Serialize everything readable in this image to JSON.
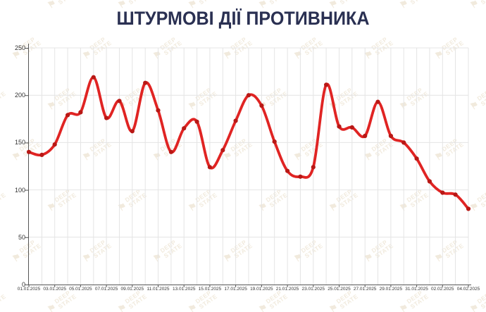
{
  "title": "ШТУРМОВІ ДІЇ ПРОТИВНИКА",
  "watermark": {
    "line1": "DEEP",
    "line2": "STATE",
    "flag_icon": "⚑"
  },
  "colors": {
    "line": "#e02423",
    "marker": "#b81815",
    "title": "#2a3052",
    "grid": "#e4e4e4",
    "axis": "#555555",
    "tick_text": "#333333",
    "watermark": "#d2bd92"
  },
  "chart_data": {
    "type": "line",
    "title": "ШТУРМОВІ ДІЇ ПРОТИВНИКА",
    "xlabel": "",
    "ylabel": "",
    "ylim": [
      0,
      250
    ],
    "y_ticks": [
      0,
      50,
      100,
      150,
      200,
      250
    ],
    "grid": true,
    "legend": "none",
    "x_tick_every": 2,
    "x": [
      "01.01.2025",
      "02.01.2025",
      "03.01.2025",
      "04.01.2025",
      "05.01.2025",
      "06.01.2025",
      "07.01.2025",
      "08.01.2025",
      "09.01.2025",
      "10.01.2025",
      "11.01.2025",
      "12.01.2025",
      "13.01.2025",
      "14.01.2025",
      "15.01.2025",
      "16.01.2025",
      "17.01.2025",
      "18.01.2025",
      "19.01.2025",
      "20.01.2025",
      "21.01.2025",
      "22.01.2025",
      "23.01.2025",
      "24.01.2025",
      "25.01.2025",
      "26.01.2025",
      "27.01.2025",
      "28.01.2025",
      "29.01.2025",
      "30.01.2025",
      "31.01.2025",
      "01.02.2025",
      "02.02.2025",
      "03.02.2025",
      "04.02.2025"
    ],
    "values": [
      140,
      137,
      148,
      179,
      182,
      219,
      176,
      194,
      162,
      213,
      184,
      140,
      165,
      172,
      124,
      142,
      173,
      200,
      189,
      151,
      120,
      114,
      124,
      211,
      167,
      166,
      157,
      193,
      157,
      150,
      133,
      109,
      97,
      95,
      80
    ]
  }
}
